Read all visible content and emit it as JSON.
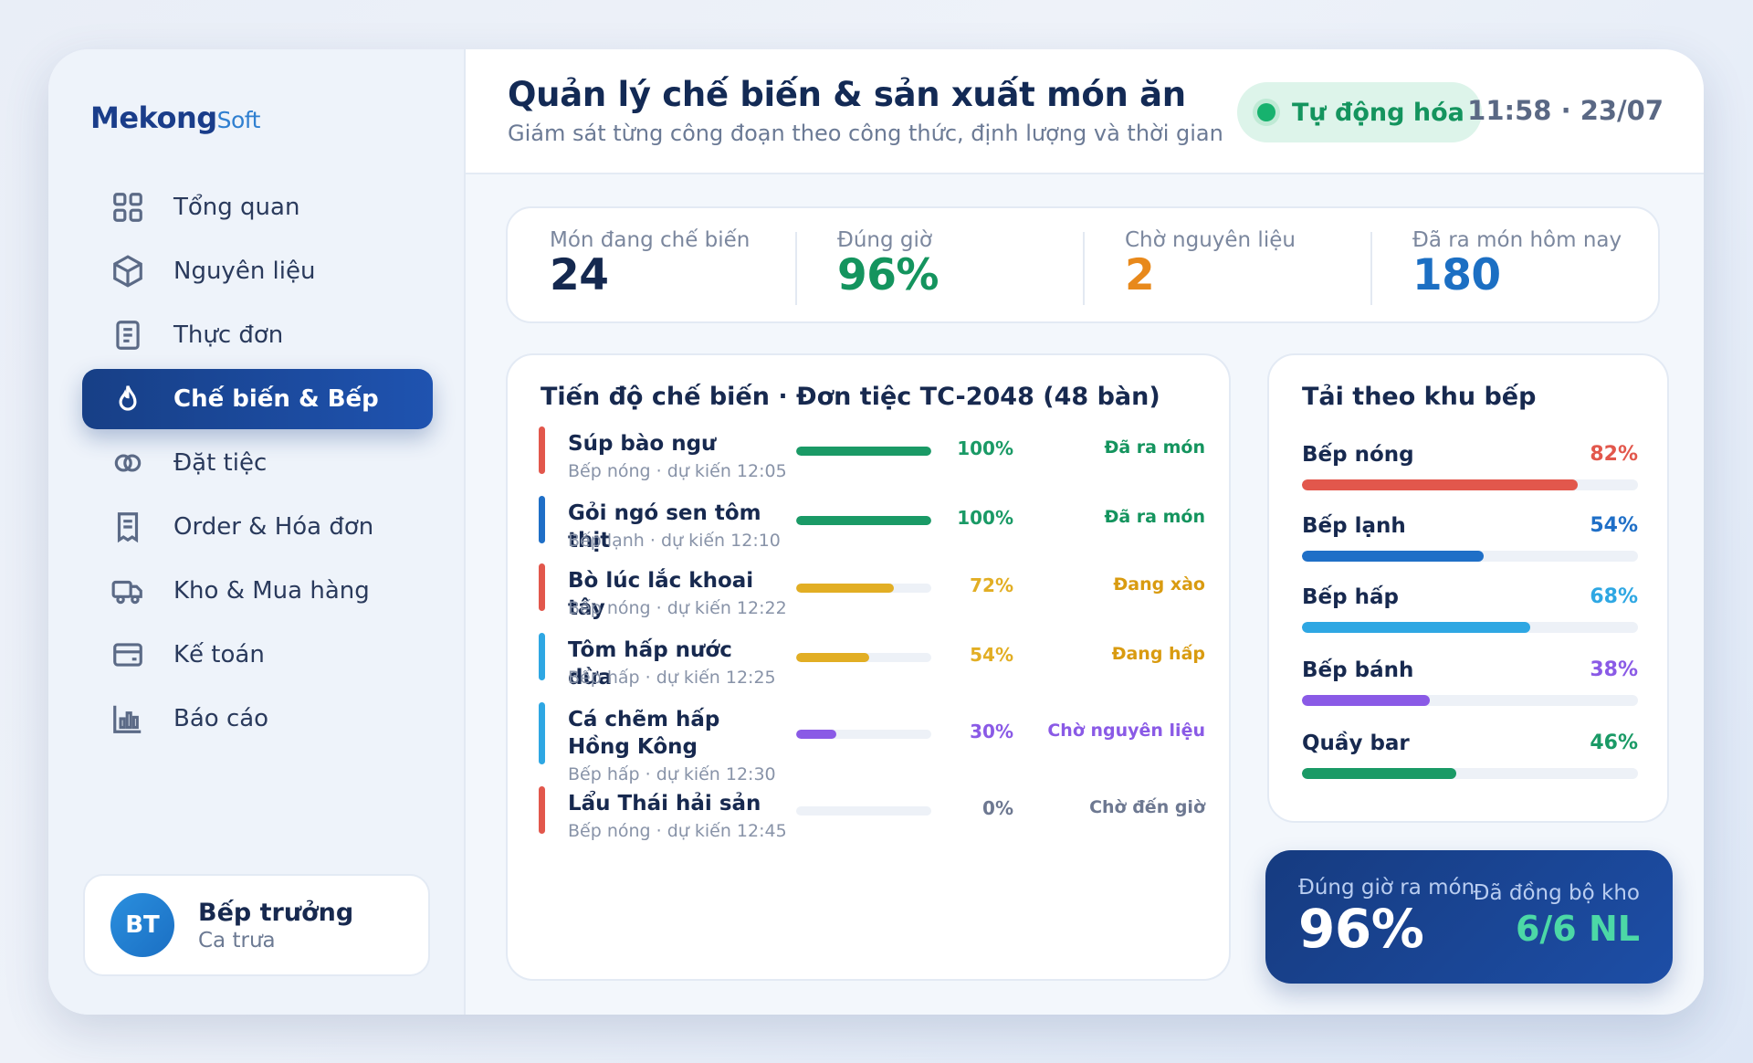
{
  "brand": {
    "name": "Mekong",
    "suffix": "Soft"
  },
  "sidebar": {
    "items": [
      {
        "label": "Tổng quan",
        "icon": "grid-icon"
      },
      {
        "label": "Nguyên liệu",
        "icon": "box-icon"
      },
      {
        "label": "Thực đơn",
        "icon": "menu-doc-icon"
      },
      {
        "label": "Chế biến & Bếp",
        "icon": "flame-icon",
        "active": true
      },
      {
        "label": "Đặt tiệc",
        "icon": "rings-icon"
      },
      {
        "label": "Order & Hóa đơn",
        "icon": "receipt-icon"
      },
      {
        "label": "Kho & Mua hàng",
        "icon": "truck-icon"
      },
      {
        "label": "Kế toán",
        "icon": "wallet-icon"
      },
      {
        "label": "Báo cáo",
        "icon": "bar-chart-icon"
      }
    ],
    "user": {
      "initials": "BT",
      "name": "Bếp trưởng",
      "shift": "Ca trưa"
    }
  },
  "header": {
    "title": "Quản lý chế biến & sản xuất món ăn",
    "subtitle": "Giám sát từng công đoạn theo công thức, định lượng và thời gian",
    "badge": "Tự động hóa",
    "clock": "11:58 · 23/07"
  },
  "stats": [
    {
      "label": "Món đang chế biến",
      "value": "24",
      "color": "#14284f"
    },
    {
      "label": "Đúng giờ",
      "value": "96%",
      "color": "#14945e"
    },
    {
      "label": "Chờ nguyên liệu",
      "value": "2",
      "color": "#e8891b"
    },
    {
      "label": "Đã ra món hôm nay",
      "value": "180",
      "color": "#1c6fc3"
    }
  ],
  "progress": {
    "title": "Tiến độ chế biến · Đơn tiệc TC-2048 (48 bàn)",
    "rows": [
      {
        "name": "Súp bào ngư",
        "sub": "Bếp nóng · dự kiến 12:05",
        "pct": 100,
        "pct_label": "100%",
        "status": "Đã ra món",
        "bar_color": "#1a9a66",
        "status_color": "#14945e",
        "accent": "#e2574c"
      },
      {
        "name": "Gỏi ngó sen tôm thịt",
        "sub": "Bếp lạnh · dự kiến 12:10",
        "pct": 100,
        "pct_label": "100%",
        "status": "Đã ra món",
        "bar_color": "#1a9a66",
        "status_color": "#14945e",
        "accent": "#1f6fc7"
      },
      {
        "name": "Bò lúc lắc khoai tây",
        "sub": "Bếp nóng · dự kiến 12:22",
        "pct": 72,
        "pct_label": "72%",
        "status": "Đang xào",
        "bar_color": "#e2ae24",
        "status_color": "#d99b10",
        "accent": "#e2574c"
      },
      {
        "name": "Tôm hấp nước dừa",
        "sub": "Bếp hấp · dự kiến 12:25",
        "pct": 54,
        "pct_label": "54%",
        "status": "Đang hấp",
        "bar_color": "#e2ae24",
        "status_color": "#d99b10",
        "accent": "#2ea7e3"
      },
      {
        "name": "Cá chẽm hấp Hồng Kông",
        "sub": "Bếp hấp · dự kiến 12:30",
        "pct": 30,
        "pct_label": "30%",
        "status": "Chờ nguyên liệu",
        "bar_color": "#8a5ae6",
        "status_color": "#8a5ae6",
        "accent": "#2ea7e3"
      },
      {
        "name": "Lẩu Thái hải sản",
        "sub": "Bếp nóng · dự kiến 12:45",
        "pct": 0,
        "pct_label": "0%",
        "status": "Chờ đến giờ",
        "bar_color": "#cfd7e4",
        "status_color": "#6d7891",
        "accent": "#e2574c"
      }
    ]
  },
  "load": {
    "title": "Tải theo khu bếp",
    "rows": [
      {
        "name": "Bếp nóng",
        "pct": 82,
        "pct_label": "82%",
        "color": "#e2574c"
      },
      {
        "name": "Bếp lạnh",
        "pct": 54,
        "pct_label": "54%",
        "color": "#1f6fc7"
      },
      {
        "name": "Bếp hấp",
        "pct": 68,
        "pct_label": "68%",
        "color": "#2ea7e3"
      },
      {
        "name": "Bếp bánh",
        "pct": 38,
        "pct_label": "38%",
        "color": "#8a5ae6"
      },
      {
        "name": "Quầy bar",
        "pct": 46,
        "pct_label": "46%",
        "color": "#1a9a66"
      }
    ]
  },
  "summary": {
    "left_label": "Đúng giờ ra món",
    "left_value": "96%",
    "right_label": "Đã đồng bộ kho",
    "right_value": "6/6 NL"
  }
}
